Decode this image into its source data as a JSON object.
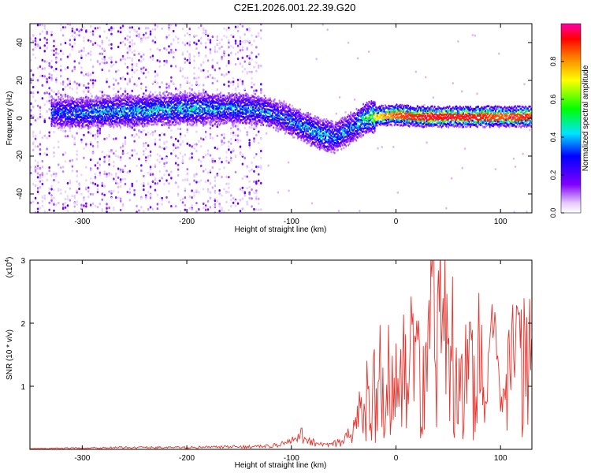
{
  "title": "C2E1.2026.001.22.39.G20",
  "chart_data": [
    {
      "type": "heatmap",
      "title": "C2E1.2026.001.22.39.G20",
      "xlabel": "Height of straight line (km)",
      "ylabel": "Frequency (Hz)",
      "xlim": [
        -350,
        130
      ],
      "ylim": [
        -50,
        50
      ],
      "xticks": [
        -300,
        -200,
        -100,
        0,
        100
      ],
      "yticks": [
        -40,
        -20,
        0,
        20,
        40
      ],
      "colorbar": {
        "label": "Normalized spectral amplitude",
        "range": [
          0,
          1
        ],
        "ticks": [
          0.0,
          0.2,
          0.4,
          0.6,
          0.8
        ]
      },
      "signal_trace": {
        "x": [
          -330,
          -300,
          -250,
          -200,
          -150,
          -130,
          -110,
          -90,
          -75,
          -60,
          -50,
          -40,
          -30,
          -20,
          0,
          20,
          50,
          80,
          100,
          130
        ],
        "frequency": [
          3,
          3,
          4,
          5,
          5,
          4,
          1,
          -4,
          -8,
          -10,
          -7,
          -4,
          0,
          1,
          2,
          1,
          1,
          1,
          1,
          1
        ],
        "amplitude": [
          0.35,
          0.4,
          0.45,
          0.45,
          0.4,
          0.4,
          0.35,
          0.4,
          0.45,
          0.4,
          0.4,
          0.4,
          0.5,
          0.7,
          0.85,
          0.9,
          0.9,
          0.9,
          0.85,
          0.9
        ]
      }
    },
    {
      "type": "line",
      "xlabel": "Height of straight line (km)",
      "ylabel": "SNR (10 * v/v)",
      "y_multiplier_label": "(x10",
      "y_multiplier_exp": "4",
      "y_multiplier_close": ")",
      "xlim": [
        -350,
        130
      ],
      "ylim": [
        0,
        3
      ],
      "xticks": [
        -300,
        -200,
        -100,
        0,
        100
      ],
      "yticks": [
        1,
        2,
        3
      ],
      "series": [
        {
          "name": "SNR",
          "color": "#e8332c",
          "x": [
            -350,
            -300,
            -250,
            -200,
            -150,
            -120,
            -100,
            -90,
            -80,
            -70,
            -60,
            -50,
            -40,
            -30,
            -20,
            -10,
            0,
            10,
            20,
            30,
            40,
            45,
            50,
            60,
            70,
            80,
            90,
            95,
            100,
            110,
            120,
            130
          ],
          "y": [
            0.01,
            0.02,
            0.03,
            0.03,
            0.04,
            0.05,
            0.12,
            0.22,
            0.12,
            0.06,
            0.08,
            0.12,
            0.3,
            0.7,
            1.0,
            1.2,
            1.0,
            1.2,
            1.5,
            1.6,
            2.0,
            2.4,
            1.8,
            1.4,
            1.1,
            1.0,
            1.2,
            1.5,
            0.4,
            1.2,
            1.3,
            1.3
          ]
        }
      ]
    }
  ]
}
